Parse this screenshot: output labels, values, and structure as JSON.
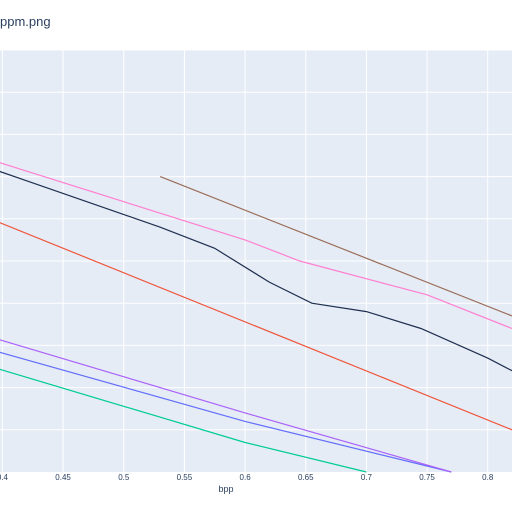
{
  "chart_data": {
    "type": "line",
    "title": "ppm.png",
    "xlabel": "bpp",
    "ylabel": "",
    "xlim": [
      0.398,
      0.82
    ],
    "ylim": [
      0,
      1
    ],
    "grid": true,
    "plot_bg": "#e5ecf6",
    "x_ticks": [
      0.4,
      0.45,
      0.5,
      0.55,
      0.6,
      0.65,
      0.7,
      0.75,
      0.8
    ],
    "x_tick_labels": [
      "0.4",
      "0.45",
      "0.5",
      "0.55",
      "0.6",
      "0.65",
      "0.7",
      "0.75",
      "0.8"
    ],
    "y_grid": [
      0.1,
      0.2,
      0.3,
      0.4,
      0.5,
      0.6,
      0.7,
      0.8,
      0.9,
      1.0
    ],
    "series": [
      {
        "color": "#636efa",
        "values": [
          [
            0.39,
            0.29
          ],
          [
            0.6,
            0.12
          ],
          [
            0.77,
            0.0
          ]
        ]
      },
      {
        "color": "#ef553b",
        "values": [
          [
            0.39,
            0.6
          ],
          [
            0.82,
            0.1
          ]
        ]
      },
      {
        "color": "#00cc96",
        "values": [
          [
            0.39,
            0.25
          ],
          [
            0.6,
            0.07
          ],
          [
            0.7,
            0.0
          ]
        ]
      },
      {
        "color": "#ab63fa",
        "values": [
          [
            0.39,
            0.32
          ],
          [
            0.6,
            0.14
          ],
          [
            0.77,
            0.0
          ]
        ]
      },
      {
        "color": "#1f2f4f",
        "values": [
          [
            0.39,
            0.72
          ],
          [
            0.42,
            0.69
          ],
          [
            0.53,
            0.58
          ],
          [
            0.575,
            0.53
          ],
          [
            0.62,
            0.45
          ],
          [
            0.655,
            0.4
          ],
          [
            0.7,
            0.38
          ],
          [
            0.745,
            0.34
          ],
          [
            0.8,
            0.27
          ],
          [
            0.82,
            0.24
          ]
        ]
      },
      {
        "color": "#ff7fd0",
        "values": [
          [
            0.39,
            0.74
          ],
          [
            0.6,
            0.55
          ],
          [
            0.645,
            0.5
          ],
          [
            0.75,
            0.42
          ],
          [
            0.82,
            0.34
          ]
        ]
      },
      {
        "color": "#9b6e5a",
        "values": [
          [
            0.53,
            0.7
          ],
          [
            0.82,
            0.37
          ]
        ]
      }
    ]
  }
}
